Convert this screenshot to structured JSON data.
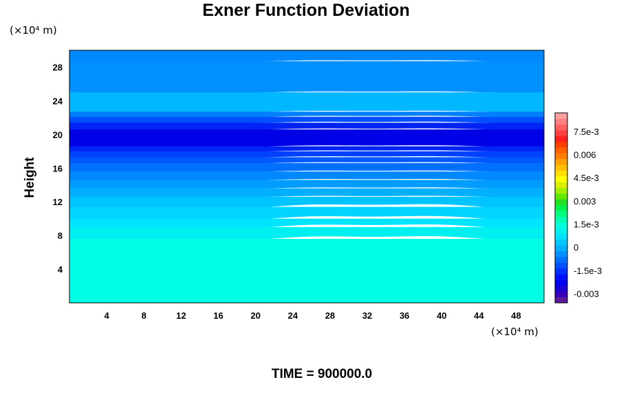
{
  "chart_data": {
    "type": "heatmap",
    "title": "Exner Function Deviation",
    "ylabel": "Height",
    "y_unit": "(×10⁴ m)",
    "x_unit": "(×10⁴ m)",
    "footer": "TIME = 900000.0",
    "xlim": [
      0,
      51
    ],
    "ylim": [
      0,
      30
    ],
    "x_ticks": [
      4,
      8,
      12,
      16,
      20,
      24,
      28,
      32,
      36,
      40,
      44,
      48
    ],
    "y_ticks": [
      4,
      8,
      12,
      16,
      20,
      24,
      28
    ],
    "colorbar": {
      "ticks": [
        {
          "value": -0.003,
          "label": "-0.003"
        },
        {
          "value": -0.0015,
          "label": "-1.5e-3"
        },
        {
          "value": 0,
          "label": "0"
        },
        {
          "value": 0.0015,
          "label": "1.5e-3"
        },
        {
          "value": 0.003,
          "label": "0.003"
        },
        {
          "value": 0.0045,
          "label": "4.5e-3"
        },
        {
          "value": 0.006,
          "label": "0.006"
        },
        {
          "value": 0.0075,
          "label": "7.5e-3"
        }
      ],
      "min": -0.0036,
      "max": 0.0087,
      "colors": [
        "#5a1a9a",
        "#3a00b8",
        "#1a00d8",
        "#0000f0",
        "#0010ff",
        "#0030ff",
        "#0050ff",
        "#0070ff",
        "#0090ff",
        "#00b0ff",
        "#00c8ff",
        "#00e0ff",
        "#00f0f0",
        "#00ffd8",
        "#00ffb0",
        "#00ff80",
        "#00f050",
        "#20e020",
        "#60e800",
        "#a0f000",
        "#d8f000",
        "#ffff00",
        "#ffe000",
        "#ffc000",
        "#ffa000",
        "#ff8000",
        "#ff6000",
        "#ff4000",
        "#ff2020",
        "#ff4040",
        "#ff6060",
        "#ff8080",
        "#ffa0a0"
      ]
    },
    "layers": [
      {
        "y0": 0,
        "y1": 7.6,
        "value": 0.00035,
        "color": "#00ffe4"
      },
      {
        "y0": 7.6,
        "y1": 9.0,
        "value": 0.0002,
        "color": "#00f0f2"
      },
      {
        "y0": 9.0,
        "y1": 10.0,
        "value": 0.0001,
        "color": "#00e4ff"
      },
      {
        "y0": 10.0,
        "y1": 11.4,
        "value": 0.0,
        "color": "#00d4ff"
      },
      {
        "y0": 11.4,
        "y1": 12.6,
        "value": -0.0002,
        "color": "#00c4ff"
      },
      {
        "y0": 12.6,
        "y1": 13.6,
        "value": -0.0004,
        "color": "#00b0ff"
      },
      {
        "y0": 13.6,
        "y1": 14.6,
        "value": -0.0006,
        "color": "#009cff"
      },
      {
        "y0": 14.6,
        "y1": 15.6,
        "value": -0.0008,
        "color": "#0088ff"
      },
      {
        "y0": 15.6,
        "y1": 16.6,
        "value": -0.001,
        "color": "#0070ff"
      },
      {
        "y0": 16.6,
        "y1": 17.3,
        "value": -0.0014,
        "color": "#0058ff"
      },
      {
        "y0": 17.3,
        "y1": 18.0,
        "value": -0.0018,
        "color": "#0040ff"
      },
      {
        "y0": 18.0,
        "y1": 18.6,
        "value": -0.0022,
        "color": "#0024f4"
      },
      {
        "y0": 18.6,
        "y1": 20.6,
        "value": -0.0026,
        "color": "#0000e6"
      },
      {
        "y0": 20.6,
        "y1": 21.4,
        "value": -0.0022,
        "color": "#0024f4"
      },
      {
        "y0": 21.4,
        "y1": 22.1,
        "value": -0.0018,
        "color": "#0050ff"
      },
      {
        "y0": 22.1,
        "y1": 22.7,
        "value": -0.0012,
        "color": "#0080ff"
      },
      {
        "y0": 22.7,
        "y1": 25.0,
        "value": -0.0006,
        "color": "#00b8ff"
      },
      {
        "y0": 25.0,
        "y1": 28.7,
        "value": -0.0009,
        "color": "#0090ff"
      },
      {
        "y0": 28.7,
        "y1": 30,
        "value": -0.001,
        "color": "#0088ff"
      }
    ]
  }
}
